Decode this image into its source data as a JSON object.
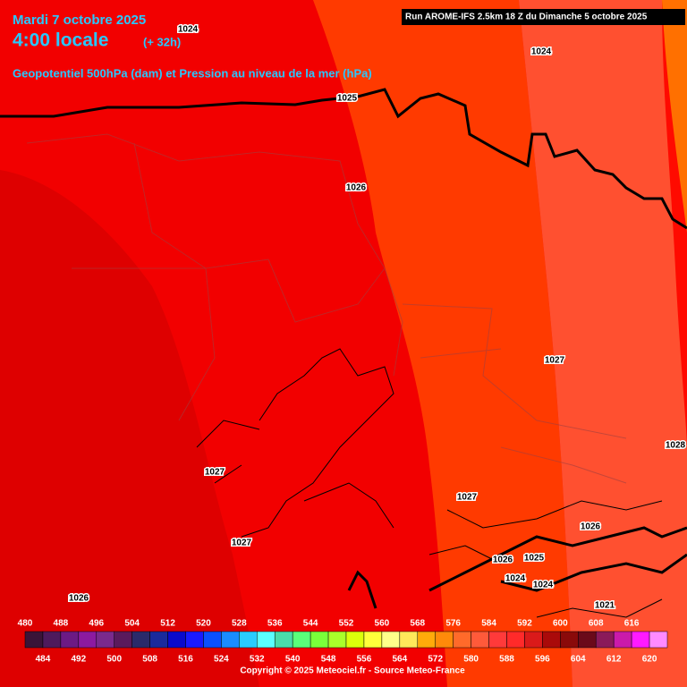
{
  "header": {
    "date": "Mardi 7 octobre 2025",
    "time": "4:00 locale",
    "lead": "(+ 32h)",
    "field": "Geopotentiel 500hPa (dam) et Pression au niveau de la mer (hPa)",
    "run": "Run AROME-IFS 2.5km 18 Z du Dimanche 5 octobre 2025"
  },
  "isobar_labels": [
    1024,
    1024,
    1025,
    1026,
    1027,
    1028,
    1027,
    1027,
    1026,
    1027,
    1026,
    1025,
    1024,
    1024,
    1026,
    1021
  ],
  "legend": {
    "scale": [
      {
        "value": 480,
        "color": "#3a1438"
      },
      {
        "value": 484,
        "color": "#4e1a5c"
      },
      {
        "value": 488,
        "color": "#6c1a84"
      },
      {
        "value": 492,
        "color": "#8c1aa0"
      },
      {
        "value": 496,
        "color": "#7a2a8c"
      },
      {
        "value": 500,
        "color": "#5a1a5c"
      },
      {
        "value": 504,
        "color": "#2a2a6a"
      },
      {
        "value": 508,
        "color": "#1a2a9c"
      },
      {
        "value": 512,
        "color": "#0a0acc"
      },
      {
        "value": 516,
        "color": "#1a1aff"
      },
      {
        "value": 520,
        "color": "#0a50ff"
      },
      {
        "value": 524,
        "color": "#1a8cff"
      },
      {
        "value": 528,
        "color": "#2accff"
      },
      {
        "value": 532,
        "color": "#5affff"
      },
      {
        "value": 536,
        "color": "#4adcaa"
      },
      {
        "value": 540,
        "color": "#5aff7a"
      },
      {
        "value": 544,
        "color": "#7aff3a"
      },
      {
        "value": 548,
        "color": "#aaff2a"
      },
      {
        "value": 552,
        "color": "#dcff0a"
      },
      {
        "value": 556,
        "color": "#ffff3a"
      },
      {
        "value": 560,
        "color": "#ffff8a"
      },
      {
        "value": 564,
        "color": "#ffe85a"
      },
      {
        "value": 568,
        "color": "#ffaa0a"
      },
      {
        "value": 572,
        "color": "#ff8a0a"
      },
      {
        "value": 576,
        "color": "#ff6a2a"
      },
      {
        "value": 580,
        "color": "#ff5a3a"
      },
      {
        "value": 584,
        "color": "#ff3a3a"
      },
      {
        "value": 588,
        "color": "#ff2a2a"
      },
      {
        "value": 592,
        "color": "#da1a1a"
      },
      {
        "value": 596,
        "color": "#aa0a0a"
      },
      {
        "value": 600,
        "color": "#8a0a0a"
      },
      {
        "value": 604,
        "color": "#6a0a1a"
      },
      {
        "value": 608,
        "color": "#8a1a5a"
      },
      {
        "value": 612,
        "color": "#ca1aaa"
      },
      {
        "value": 616,
        "color": "#ff1aff"
      },
      {
        "value": 620,
        "color": "#ff8aff"
      }
    ],
    "copyright": "Copyright © 2025 Meteociel.fr - Source Meteo-France"
  }
}
